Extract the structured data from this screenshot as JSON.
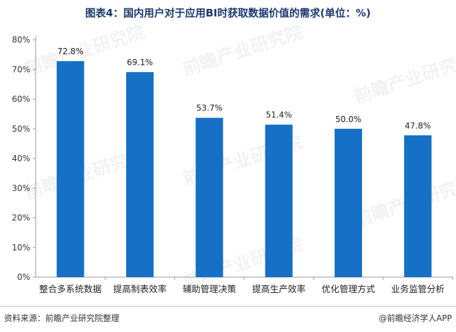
{
  "title": "图表4：国内用户对于应用BI时获取数据价值的需求(单位：%)",
  "footer": {
    "source": "资料来源：前瞻产业研究院整理",
    "credit": "@前瞻经济学人APP"
  },
  "watermark": "前瞻产业研究院",
  "colors": {
    "bar": "#1570c6",
    "axis": "#9a9a9a",
    "title": "#1a3a6e"
  },
  "chart_data": {
    "type": "bar",
    "title": "图表4：国内用户对于应用BI时获取数据价值的需求(单位：%)",
    "categories": [
      "整合多系统数据",
      "提高制表效率",
      "辅助管理决策",
      "提高生产效率",
      "优化管理方式",
      "业务监管分析"
    ],
    "values": [
      72.8,
      69.1,
      53.7,
      51.4,
      50.0,
      47.8
    ],
    "value_labels": [
      "72.8%",
      "69.1%",
      "53.7%",
      "51.4%",
      "50.0%",
      "47.8%"
    ],
    "ylim": [
      0,
      80
    ],
    "yticks": [
      0,
      10,
      20,
      30,
      40,
      50,
      60,
      70,
      80
    ],
    "ytick_labels": [
      "0%",
      "10%",
      "20%",
      "30%",
      "40%",
      "50%",
      "60%",
      "70%",
      "80%"
    ],
    "xlabel": "",
    "ylabel": "",
    "grid": false,
    "legend": "none"
  }
}
